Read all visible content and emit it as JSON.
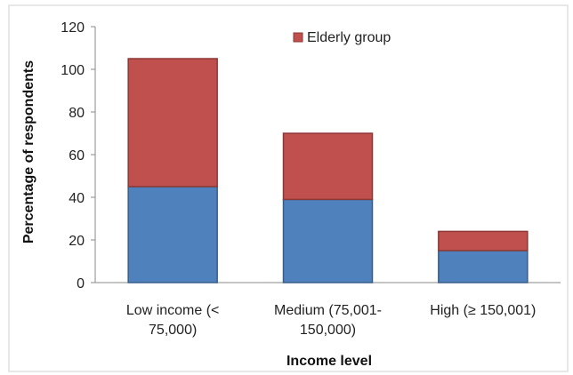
{
  "chart_data": {
    "type": "bar",
    "stacked": true,
    "categories": [
      [
        "Low income (<",
        "75,000)"
      ],
      [
        "Medium (75,001-",
        "150,000)"
      ],
      [
        "High (≥ 150,001)"
      ]
    ],
    "series": [
      {
        "values": [
          45,
          39,
          15
        ],
        "color": "#4f81bd",
        "stroke": "#385d8a"
      },
      {
        "name": "Elderly group",
        "values": [
          60,
          31,
          9
        ],
        "color": "#c0504d",
        "stroke": "#8c3836"
      }
    ],
    "xlabel": "Income level",
    "ylabel": "Percentage of respondents",
    "ylim": [
      0,
      120
    ],
    "yticks": [
      0,
      20,
      40,
      60,
      80,
      100,
      120
    ],
    "grid": false,
    "legend_position": "top-right"
  }
}
